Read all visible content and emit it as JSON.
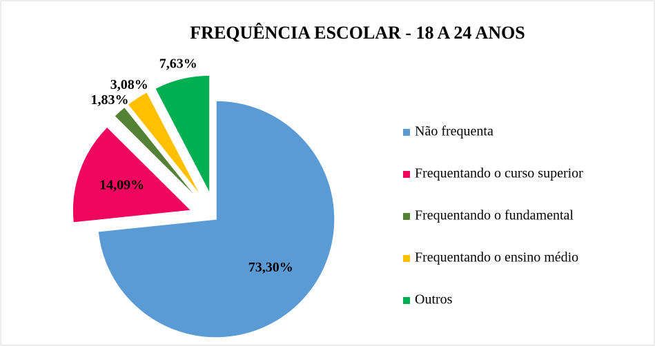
{
  "chart_data": {
    "type": "pie",
    "title": "FREQUÊNCIA ESCOLAR - 18 A 24 ANOS",
    "categories": [
      "Não frequenta",
      "Frequentando o curso superior",
      "Frequentando o fundamental",
      "Frequentando o ensino médio",
      "Outros"
    ],
    "values": [
      73.3,
      14.09,
      1.83,
      3.08,
      7.63
    ],
    "value_labels": [
      "73,30%",
      "14,09%",
      "1,83%",
      "3,08%",
      "7,63%"
    ],
    "colors": [
      "#5b9bd5",
      "#f0065f",
      "#548235",
      "#ffc000",
      "#00b050"
    ],
    "legend": "right"
  }
}
